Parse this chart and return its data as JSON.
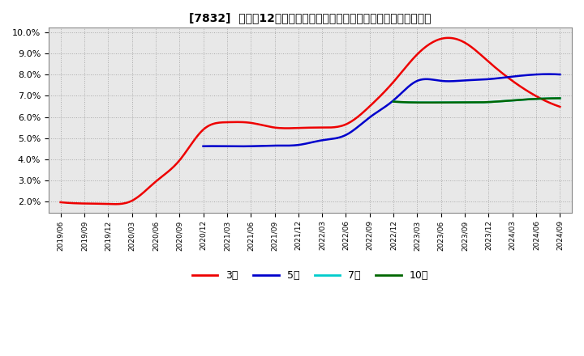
{
  "title": "[7832]  売上高12か月移動合計の対前年同期増減率の標準偏差の推移",
  "ylim": [
    0.015,
    0.102
  ],
  "yticks": [
    0.02,
    0.03,
    0.04,
    0.05,
    0.06,
    0.07,
    0.08,
    0.09,
    0.1
  ],
  "ytick_labels": [
    "2.0%",
    "3.0%",
    "4.0%",
    "5.0%",
    "6.0%",
    "7.0%",
    "8.0%",
    "9.0%",
    "10.0%"
  ],
  "background_color": "#ffffff",
  "plot_bg_color": "#e8e8e8",
  "grid_color": "#aaaaaa",
  "series_3y": {
    "color": "#ee0000",
    "xi": [
      0,
      1,
      2,
      3,
      4,
      5,
      6,
      7,
      8,
      9,
      10,
      11,
      12,
      13,
      14,
      15,
      16,
      17,
      18,
      19,
      20,
      21
    ],
    "yi": [
      0.0198,
      0.0192,
      0.019,
      0.0205,
      0.0295,
      0.0395,
      0.054,
      0.0575,
      0.0572,
      0.055,
      0.0548,
      0.055,
      0.0565,
      0.065,
      0.0765,
      0.0895,
      0.0968,
      0.095,
      0.086,
      0.077,
      0.0698,
      0.0648
    ]
  },
  "series_5y": {
    "color": "#0000cc",
    "xi": [
      6,
      7,
      8,
      9,
      10,
      11,
      12,
      13,
      14,
      15,
      16,
      17,
      18,
      19,
      20,
      21
    ],
    "yi": [
      0.0462,
      0.0462,
      0.0462,
      0.0465,
      0.0468,
      0.049,
      0.0515,
      0.0598,
      0.0678,
      0.077,
      0.077,
      0.0772,
      0.0778,
      0.079,
      0.08,
      0.08
    ]
  },
  "series_7y": {
    "color": "#00cccc",
    "xi": [
      14,
      15,
      16,
      17,
      18,
      19,
      20,
      21
    ],
    "yi": [
      0.0672,
      0.0668,
      0.0668,
      0.0668,
      0.067,
      0.0678,
      0.0685,
      0.0688
    ]
  },
  "series_10y": {
    "color": "#006600",
    "xi": [
      14,
      15,
      16,
      17,
      18,
      19,
      20,
      21
    ],
    "yi": [
      0.0672,
      0.0668,
      0.0668,
      0.0668,
      0.067,
      0.0678,
      0.0685,
      0.0688
    ]
  },
  "x_tick_labels": [
    "2019/06",
    "2019/09",
    "2019/12",
    "2020/03",
    "2020/06",
    "2020/09",
    "2020/12",
    "2021/03",
    "2021/06",
    "2021/09",
    "2021/12",
    "2022/03",
    "2022/06",
    "2022/09",
    "2022/12",
    "2023/03",
    "2023/06",
    "2023/09",
    "2023/12",
    "2024/03",
    "2024/06",
    "2024/09"
  ],
  "legend_entries": [
    {
      "label": "3年",
      "color": "#ee0000"
    },
    {
      "label": "5年",
      "color": "#0000cc"
    },
    {
      "label": "7年",
      "color": "#00cccc"
    },
    {
      "label": "10年",
      "color": "#006600"
    }
  ]
}
